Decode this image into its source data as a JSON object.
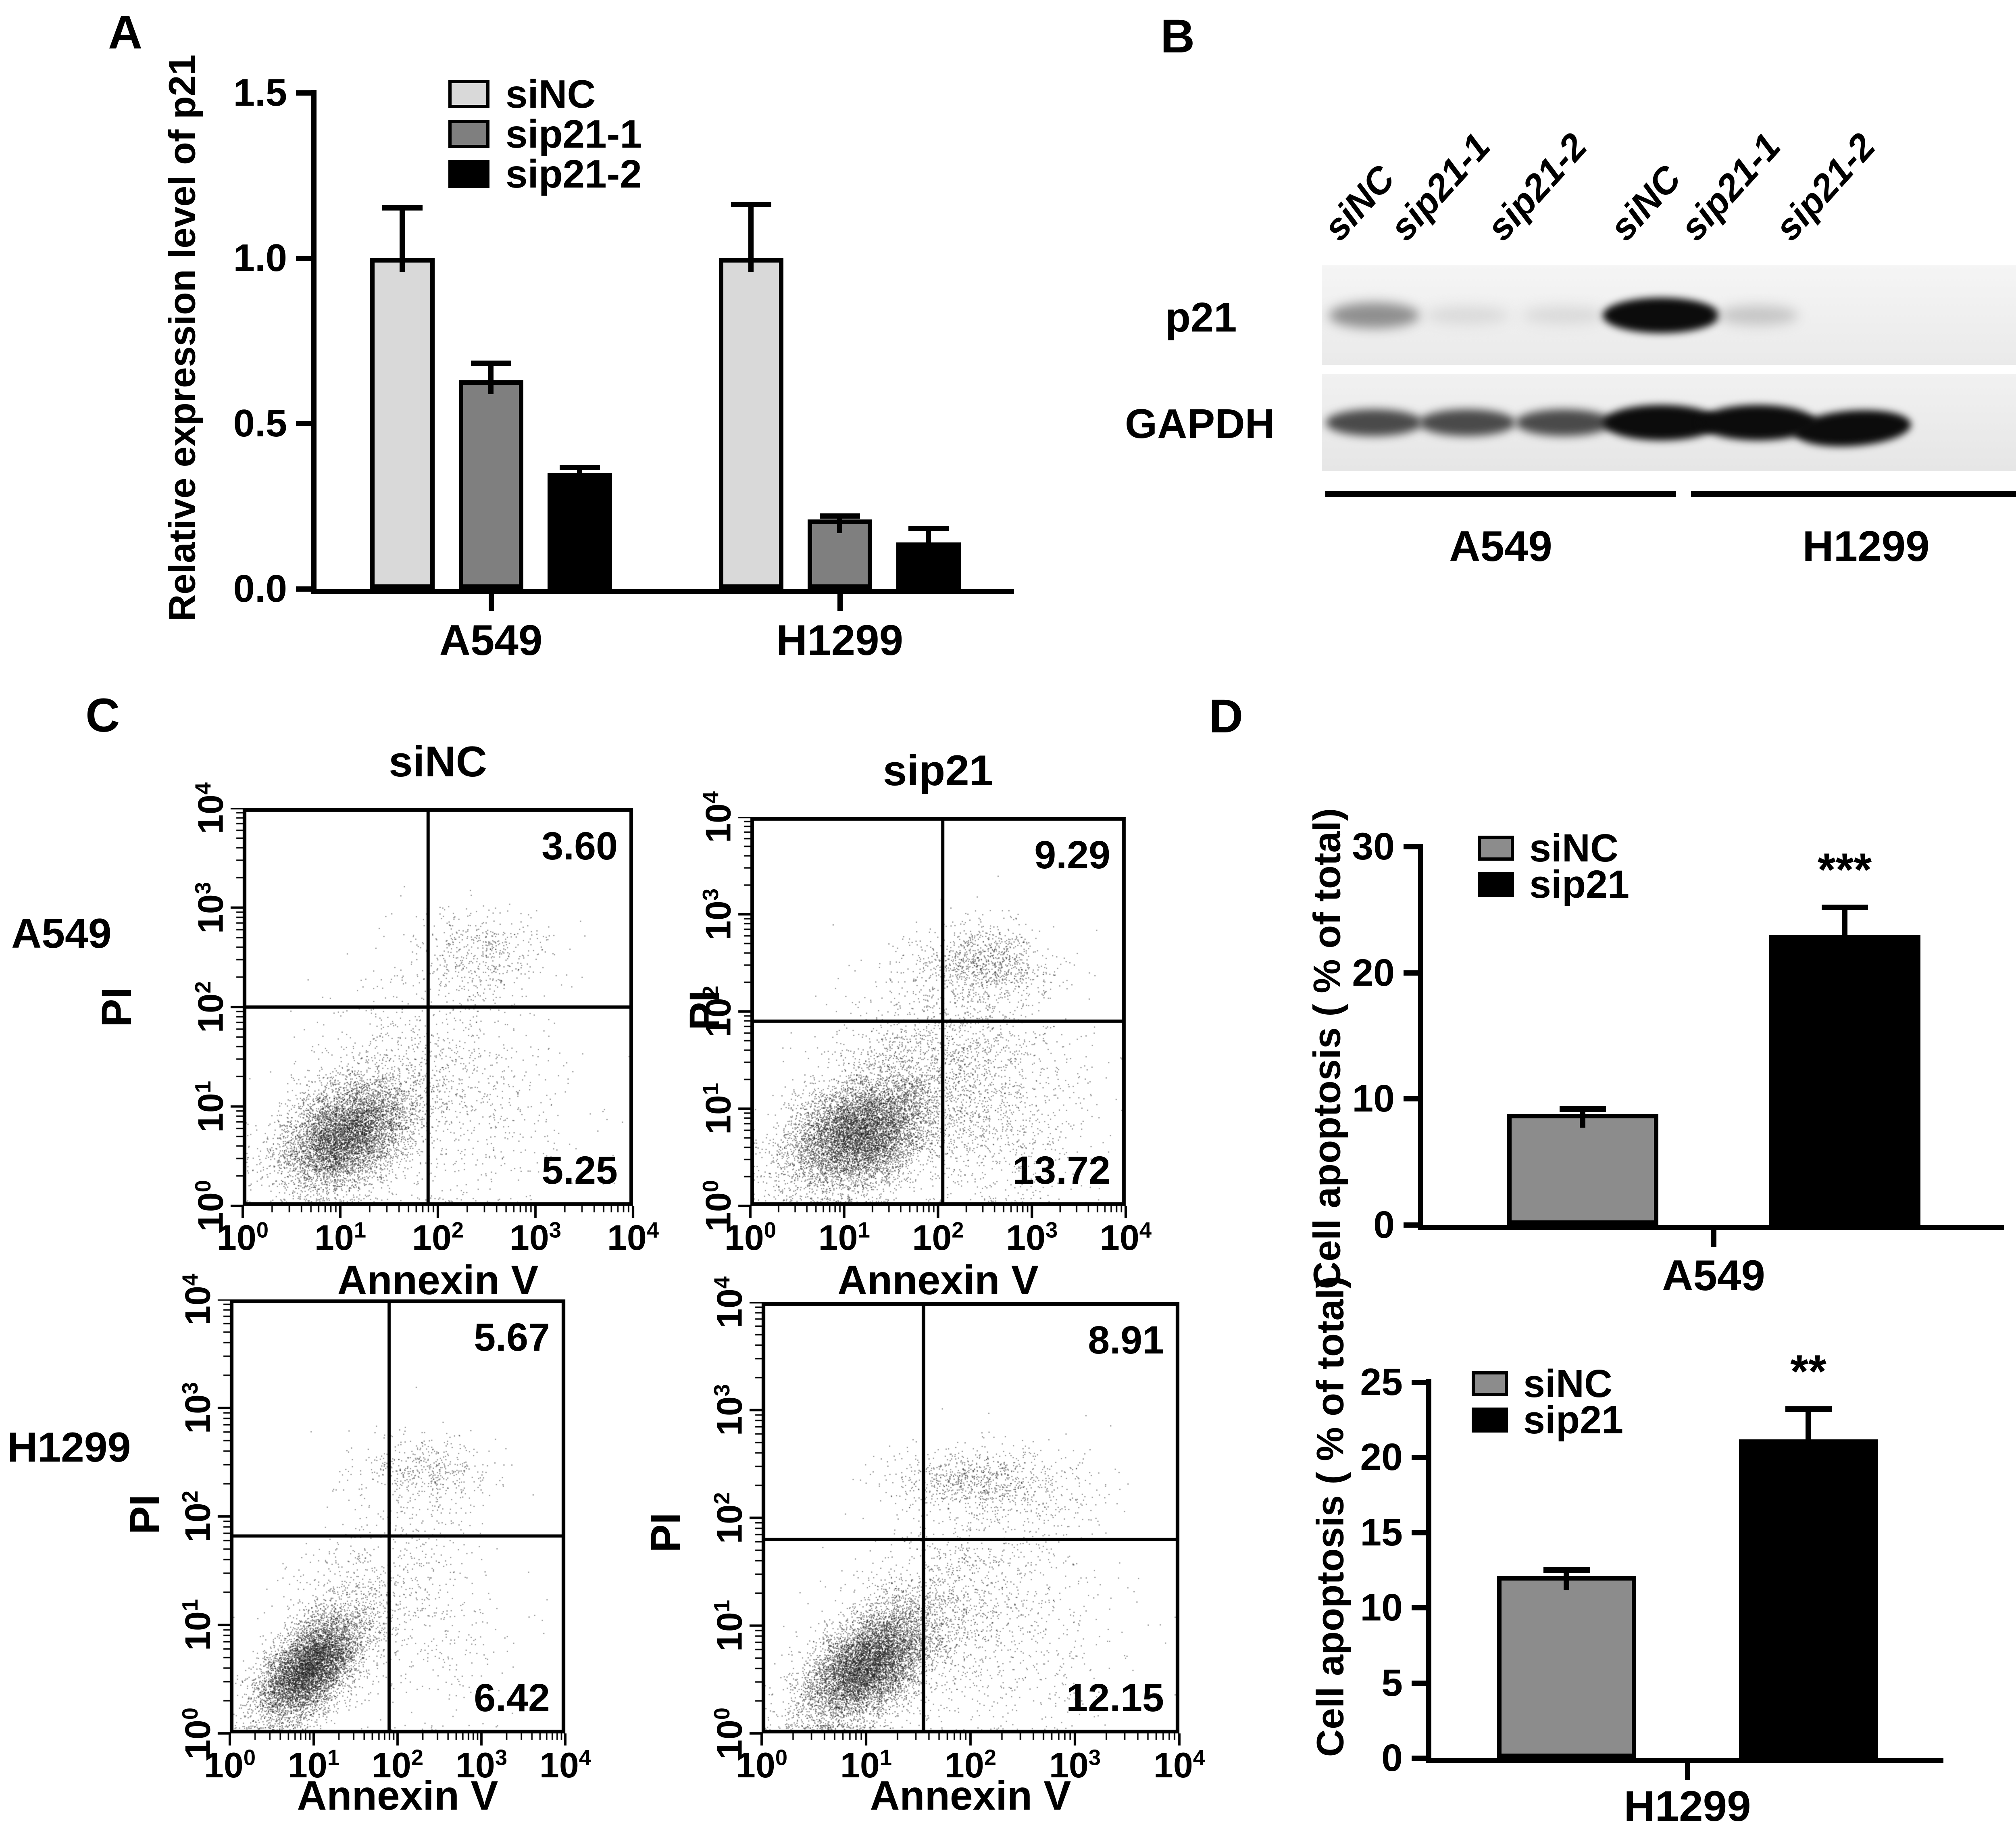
{
  "panels": {
    "A": {
      "letter": "A"
    },
    "B": {
      "letter": "B",
      "lane_labels": [
        "siNC",
        "sip21-1",
        "sip21-2",
        "siNC",
        "sip21-1",
        "sip21-2"
      ],
      "row_labels": [
        "p21",
        "GAPDH"
      ],
      "group_labels": [
        "A549",
        "H1299"
      ],
      "p21_bands": [
        "medium-faint",
        "very-faint",
        "very-faint",
        "strong",
        "faint",
        "none"
      ],
      "gapdh_bands": [
        "medium",
        "medium",
        "medium",
        "strong",
        "strong",
        "strong"
      ]
    },
    "C": {
      "letter": "C",
      "col_titles": [
        "siNC",
        "sip21"
      ],
      "row_labels": [
        "A549",
        "H1299"
      ]
    },
    "D": {
      "letter": "D"
    }
  },
  "chart_data": [
    {
      "id": "panelA",
      "type": "bar",
      "title": "",
      "xlabel": "",
      "ylabel": "Relative expression level of p21",
      "ylim": [
        0,
        1.5
      ],
      "ytick_vals": [
        0,
        0.5,
        1,
        1.5
      ],
      "ytick_labels": [
        "0.0",
        "0.5",
        "1.0",
        "1.5"
      ],
      "categories": [
        "A549",
        "H1299"
      ],
      "series": [
        {
          "name": "siNC",
          "color": "#d9d9d9",
          "values": [
            1.0,
            1.0
          ],
          "errors": [
            0.16,
            0.17
          ]
        },
        {
          "name": "sip21-1",
          "color": "#7f7f7f",
          "values": [
            0.63,
            0.21
          ],
          "errors": [
            0.06,
            0.018
          ]
        },
        {
          "name": "sip21-2",
          "color": "#000000",
          "values": [
            0.35,
            0.14
          ],
          "errors": [
            0.025,
            0.05
          ]
        }
      ],
      "legend_position": "top-right-inside",
      "grid": false
    },
    {
      "id": "panelD-A549",
      "type": "bar",
      "title": "",
      "xlabel": "",
      "ylabel": "Cell apoptosis ( % of total)",
      "ylim": [
        0,
        30
      ],
      "ytick_vals": [
        0,
        10,
        20,
        30
      ],
      "ytick_labels": [
        "0",
        "10",
        "20",
        "30"
      ],
      "categories": [
        "A549"
      ],
      "series": [
        {
          "name": "siNC",
          "color": "#8c8c8c",
          "values": [
            8.8
          ],
          "errors": [
            0.6
          ]
        },
        {
          "name": "sip21",
          "color": "#000000",
          "values": [
            23.0
          ],
          "errors": [
            2.4
          ],
          "sig": [
            "***"
          ]
        }
      ],
      "legend_position": "top-left-inside",
      "grid": false
    },
    {
      "id": "panelD-H1299",
      "type": "bar",
      "title": "",
      "xlabel": "",
      "ylabel": "Cell apoptosis ( % of total)",
      "ylim": [
        0,
        25
      ],
      "ytick_vals": [
        0,
        5,
        10,
        15,
        20,
        25
      ],
      "ytick_labels": [
        "0",
        "5",
        "10",
        "15",
        "20",
        "25"
      ],
      "categories": [
        "H1299"
      ],
      "series": [
        {
          "name": "siNC",
          "color": "#8c8c8c",
          "values": [
            12.1
          ],
          "errors": [
            0.6
          ]
        },
        {
          "name": "sip21",
          "color": "#000000",
          "values": [
            21.2
          ],
          "errors": [
            2.2
          ],
          "sig": [
            "**"
          ]
        }
      ],
      "legend_position": "top-left-inside",
      "grid": false
    },
    {
      "id": "flow-A549-siNC",
      "type": "scatter",
      "title": "siNC",
      "xlabel": "Annexin V",
      "ylabel": "PI",
      "xlog_range": [
        0,
        4
      ],
      "ylog_range": [
        0,
        4
      ],
      "tick_exponents": [
        0,
        1,
        2,
        3,
        4
      ],
      "quad_x": 1.9,
      "quad_y": 2.0,
      "ur": "3.60",
      "lr": "5.25",
      "clusters": [
        {
          "cx": 1.05,
          "cy": 0.7,
          "sx": 0.33,
          "sy": 0.26,
          "corr": 0.35,
          "n": 6000
        },
        {
          "cx": 1.45,
          "cy": 1.15,
          "sx": 0.45,
          "sy": 0.4,
          "corr": 0.2,
          "n": 900
        },
        {
          "cx": 2.45,
          "cy": 2.55,
          "sx": 0.32,
          "sy": 0.22,
          "corr": 0,
          "n": 450
        },
        {
          "cx": 2.35,
          "cy": 1.15,
          "sx": 0.5,
          "sy": 0.5,
          "corr": 0,
          "n": 450
        },
        {
          "cx": 1.9,
          "cy": 2.2,
          "sx": 0.55,
          "sy": 0.35,
          "corr": 0,
          "n": 120
        },
        {
          "cx": 2.0,
          "cy": 0.6,
          "sx": 0.8,
          "sy": 0.45,
          "corr": 0,
          "n": 200
        }
      ]
    },
    {
      "id": "flow-A549-sip21",
      "type": "scatter",
      "title": "sip21",
      "xlabel": "Annexin V",
      "ylabel": "PI",
      "xlog_range": [
        0,
        4
      ],
      "ylog_range": [
        0,
        4
      ],
      "tick_exponents": [
        0,
        1,
        2,
        3,
        4
      ],
      "quad_x": 2.05,
      "quad_y": 1.9,
      "ur": "9.29",
      "lr": "13.72",
      "clusters": [
        {
          "cx": 1.15,
          "cy": 0.72,
          "sx": 0.38,
          "sy": 0.28,
          "corr": 0.3,
          "n": 7000
        },
        {
          "cx": 1.55,
          "cy": 1.2,
          "sx": 0.45,
          "sy": 0.4,
          "corr": 0.2,
          "n": 1200
        },
        {
          "cx": 2.5,
          "cy": 2.5,
          "sx": 0.33,
          "sy": 0.2,
          "corr": 0,
          "n": 900
        },
        {
          "cx": 2.45,
          "cy": 1.2,
          "sx": 0.5,
          "sy": 0.55,
          "corr": 0,
          "n": 1100
        },
        {
          "cx": 2.1,
          "cy": 1.9,
          "sx": 0.5,
          "sy": 0.45,
          "corr": 0,
          "n": 400
        },
        {
          "cx": 2.8,
          "cy": 0.8,
          "sx": 0.5,
          "sy": 0.5,
          "corr": 0,
          "n": 300
        }
      ]
    },
    {
      "id": "flow-H1299-siNC",
      "type": "scatter",
      "title": "",
      "xlabel": "Annexin V",
      "ylabel": "PI",
      "xlog_range": [
        0,
        4
      ],
      "ylog_range": [
        0,
        4
      ],
      "tick_exponents": [
        0,
        1,
        2,
        3,
        4
      ],
      "quad_x": 1.9,
      "quad_y": 1.82,
      "ur": "5.67",
      "lr": "6.42",
      "clusters": [
        {
          "cx": 0.95,
          "cy": 0.6,
          "sx": 0.3,
          "sy": 0.24,
          "corr": 0.55,
          "n": 6500
        },
        {
          "cx": 1.35,
          "cy": 1.05,
          "sx": 0.4,
          "sy": 0.35,
          "corr": 0.3,
          "n": 700
        },
        {
          "cx": 2.35,
          "cy": 2.42,
          "sx": 0.42,
          "sy": 0.16,
          "corr": 0,
          "n": 480
        },
        {
          "cx": 2.1,
          "cy": 1.6,
          "sx": 0.5,
          "sy": 0.45,
          "corr": 0,
          "n": 250
        },
        {
          "cx": 2.3,
          "cy": 0.9,
          "sx": 0.55,
          "sy": 0.45,
          "corr": 0,
          "n": 300
        }
      ]
    },
    {
      "id": "flow-H1299-sip21",
      "type": "scatter",
      "title": "",
      "xlabel": "Annexin V",
      "ylabel": "PI",
      "xlog_range": [
        0,
        4
      ],
      "ylog_range": [
        0,
        4
      ],
      "tick_exponents": [
        0,
        1,
        2,
        3,
        4
      ],
      "quad_x": 1.55,
      "quad_y": 1.8,
      "ur": "8.91",
      "lr": "12.15",
      "clusters": [
        {
          "cx": 1.0,
          "cy": 0.62,
          "sx": 0.3,
          "sy": 0.26,
          "corr": 0.5,
          "n": 7000
        },
        {
          "cx": 1.5,
          "cy": 1.0,
          "sx": 0.4,
          "sy": 0.4,
          "corr": 0.3,
          "n": 1300
        },
        {
          "cx": 1.95,
          "cy": 2.35,
          "sx": 0.35,
          "sy": 0.14,
          "corr": 0,
          "n": 600
        },
        {
          "cx": 2.5,
          "cy": 2.3,
          "sx": 0.4,
          "sy": 0.2,
          "corr": 0,
          "n": 350
        },
        {
          "cx": 2.2,
          "cy": 1.5,
          "sx": 0.5,
          "sy": 0.5,
          "corr": 0,
          "n": 500
        },
        {
          "cx": 2.4,
          "cy": 0.7,
          "sx": 0.55,
          "sy": 0.4,
          "corr": 0,
          "n": 400
        }
      ]
    }
  ]
}
